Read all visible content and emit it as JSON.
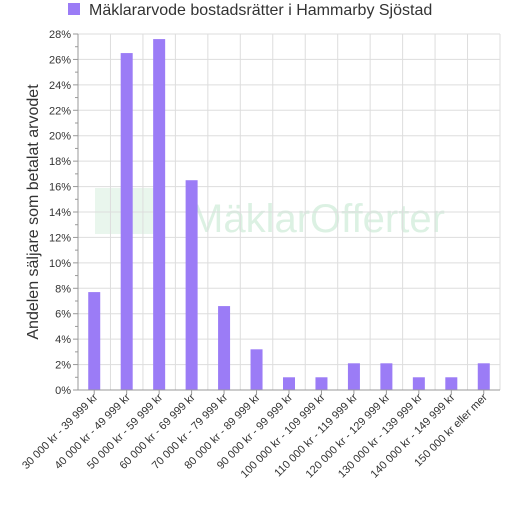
{
  "chart_data": {
    "type": "bar",
    "legend": {
      "position": "top-left",
      "entries": [
        "Mäklararvode bostadsrätter i Hammarby Sjöstad"
      ]
    },
    "ylabel": "Andelen säljare som betalat arvodet",
    "xlabel": "",
    "ylim": [
      0,
      28
    ],
    "yticks": [
      "0%",
      "2%",
      "4%",
      "6%",
      "8%",
      "10%",
      "12%",
      "14%",
      "16%",
      "18%",
      "20%",
      "22%",
      "24%",
      "26%",
      "28%"
    ],
    "grid": true,
    "categories": [
      "30 000 kr - 39 999 kr",
      "40 000 kr - 49 999 kr",
      "50 000 kr - 59 999 kr",
      "60 000 kr - 69 999 kr",
      "70 000 kr - 79 999 kr",
      "80 000 kr - 89 999 kr",
      "90 000 kr - 99 999 kr",
      "100 000 kr - 109 999 kr",
      "110 000 kr - 119 999 kr",
      "120 000 kr - 129 999 kr",
      "130 000 kr - 139 999 kr",
      "140 000 kr - 149 999 kr",
      "150 000 kr eller mer"
    ],
    "series": [
      {
        "name": "Mäklararvode bostadsrätter i Hammarby Sjöstad",
        "color": "#9b7cf6",
        "values": [
          7.7,
          26.5,
          27.6,
          16.5,
          6.6,
          3.2,
          1.0,
          1.0,
          2.1,
          2.1,
          1.0,
          1.0,
          2.1
        ]
      }
    ]
  },
  "watermark": {
    "text": "MäklarOfferter",
    "color": "#bfe6cc"
  },
  "colors": {
    "bar": "#9b7cf6",
    "grid": "#dddddd",
    "axis": "#999999",
    "text": "#333333"
  }
}
